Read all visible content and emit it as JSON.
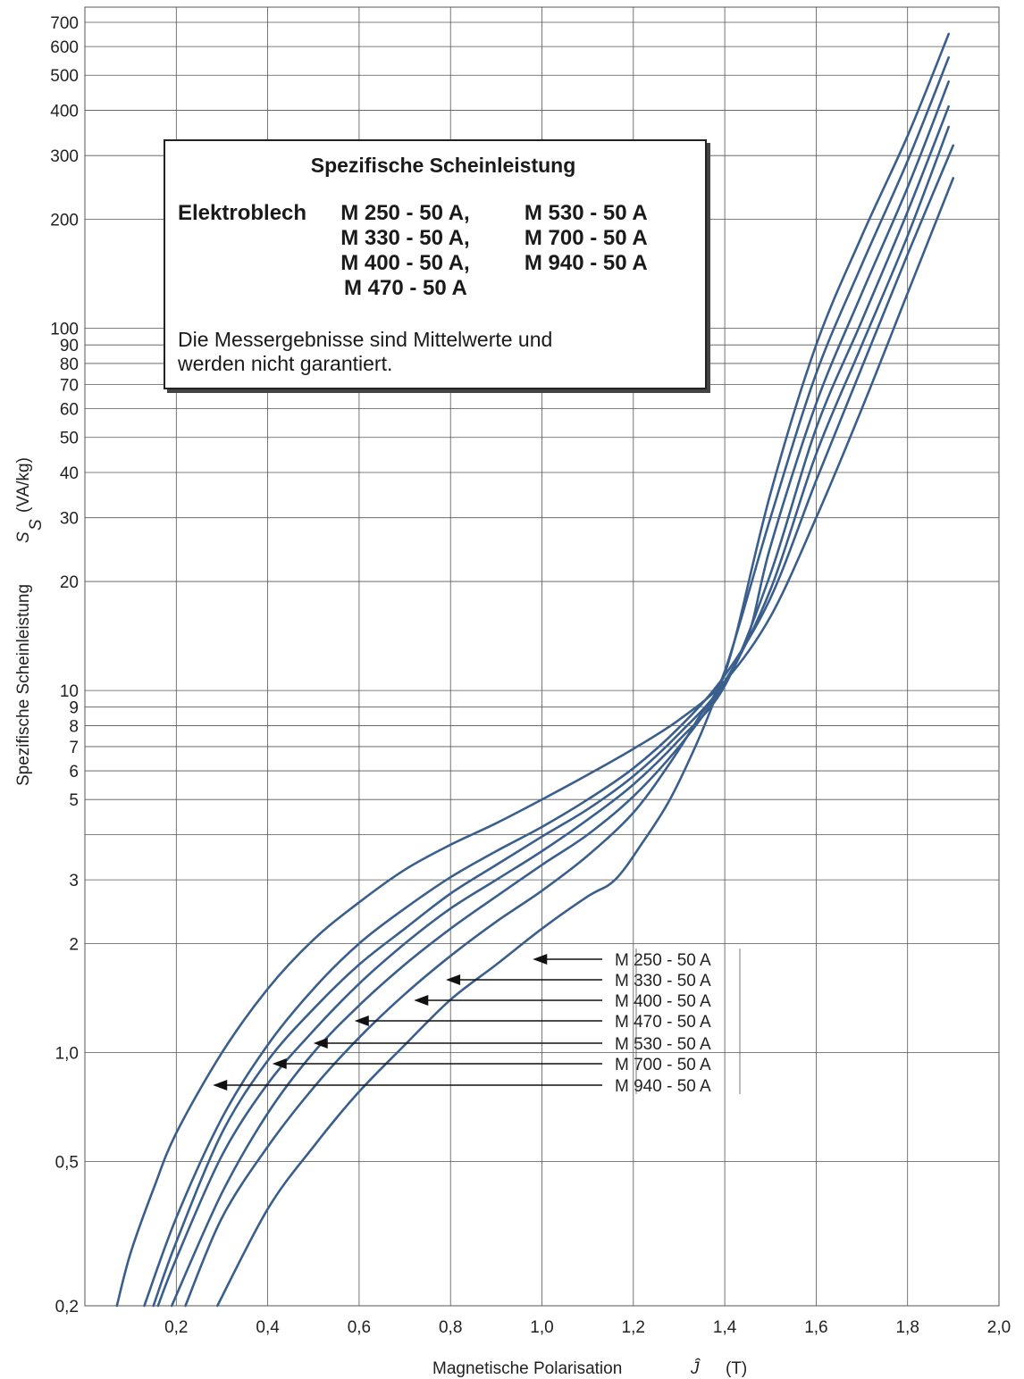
{
  "info_box": {
    "title": "Spezifische Scheinleistung",
    "lead": "Elektroblech",
    "materials_col1": [
      "M  250 - 50 A,",
      "M  330 - 50 A,",
      "M  400 - 50 A,",
      "M  470 - 50 A"
    ],
    "materials_col2": [
      "M  530 - 50 A",
      "M  700 - 50 A",
      "M  940 - 50 A",
      ""
    ],
    "note_line1": "Die Messergebnisse sind Mittelwerte und",
    "note_line2": "werden nicht garantiert."
  },
  "chart_data": {
    "type": "line",
    "title": "Spezifische Scheinleistung",
    "xlabel": "Magnetische Polarisation",
    "xlabel_symbol": "Ĵ",
    "xlabel_unit": "(T)",
    "ylabel": "Spezifische Scheinleistung",
    "ylabel_symbol": "S",
    "ylabel_subscript": "S",
    "ylabel_unit": "(VA/kg)",
    "xlim": [
      0,
      2.0
    ],
    "ylim": [
      0.2,
      800
    ],
    "yscale": "log",
    "grid": true,
    "x_ticks": [
      0.2,
      0.4,
      0.6,
      0.8,
      1.0,
      1.2,
      1.4,
      1.6,
      1.8,
      2.0
    ],
    "x_tick_labels": [
      "0,2",
      "0,4",
      "0,6",
      "0,8",
      "1,0",
      "1,2",
      "1,4",
      "1,6",
      "1,8",
      "2,0"
    ],
    "y_ticks": [
      0.2,
      0.5,
      1,
      2,
      3,
      5,
      6,
      7,
      8,
      9,
      10,
      20,
      30,
      40,
      50,
      60,
      70,
      80,
      90,
      100,
      200,
      300,
      400,
      500,
      600,
      700
    ],
    "y_tick_labels": [
      "0,2",
      "0,5",
      "1,0",
      "2",
      "3",
      "5",
      "6",
      "7",
      "8",
      "9",
      "10",
      "20",
      "30",
      "40",
      "50",
      "60",
      "70",
      "80",
      "90",
      "100",
      "200",
      "300",
      "400",
      "500",
      "600",
      "700"
    ],
    "y_grid_extra": [
      4
    ],
    "series": [
      {
        "name": "M 250 - 50 A",
        "arrow_tip": [
          0.98,
          1.85
        ],
        "points": [
          [
            0.29,
            0.2
          ],
          [
            0.4,
            0.37
          ],
          [
            0.5,
            0.55
          ],
          [
            0.6,
            0.78
          ],
          [
            0.7,
            1.05
          ],
          [
            0.8,
            1.4
          ],
          [
            0.9,
            1.75
          ],
          [
            1.0,
            2.2
          ],
          [
            1.1,
            2.7
          ],
          [
            1.16,
            3.0
          ],
          [
            1.22,
            3.8
          ],
          [
            1.28,
            5.0
          ],
          [
            1.34,
            7.2
          ],
          [
            1.38,
            9.6
          ],
          [
            1.42,
            13.5
          ],
          [
            1.5,
            35
          ],
          [
            1.6,
            90
          ],
          [
            1.7,
            180
          ],
          [
            1.8,
            340
          ],
          [
            1.89,
            650
          ]
        ]
      },
      {
        "name": "M 330 - 50 A",
        "arrow_tip": [
          0.79,
          1.6
        ],
        "points": [
          [
            0.22,
            0.2
          ],
          [
            0.3,
            0.35
          ],
          [
            0.4,
            0.55
          ],
          [
            0.5,
            0.8
          ],
          [
            0.6,
            1.1
          ],
          [
            0.7,
            1.45
          ],
          [
            0.8,
            1.85
          ],
          [
            0.9,
            2.3
          ],
          [
            1.0,
            2.8
          ],
          [
            1.1,
            3.5
          ],
          [
            1.2,
            4.6
          ],
          [
            1.28,
            6.3
          ],
          [
            1.34,
            8.3
          ],
          [
            1.4,
            11.3
          ],
          [
            1.5,
            30
          ],
          [
            1.6,
            75
          ],
          [
            1.7,
            150
          ],
          [
            1.8,
            290
          ],
          [
            1.89,
            560
          ]
        ]
      },
      {
        "name": "M 400 - 50 A",
        "arrow_tip": [
          0.72,
          1.4
        ],
        "points": [
          [
            0.19,
            0.2
          ],
          [
            0.3,
            0.41
          ],
          [
            0.4,
            0.68
          ],
          [
            0.5,
            1.0
          ],
          [
            0.6,
            1.35
          ],
          [
            0.7,
            1.75
          ],
          [
            0.8,
            2.2
          ],
          [
            0.9,
            2.7
          ],
          [
            1.0,
            3.3
          ],
          [
            1.1,
            4.0
          ],
          [
            1.2,
            5.1
          ],
          [
            1.3,
            7.0
          ],
          [
            1.38,
            9.6
          ],
          [
            1.45,
            14
          ],
          [
            1.5,
            25
          ],
          [
            1.6,
            62
          ],
          [
            1.7,
            125
          ],
          [
            1.8,
            245
          ],
          [
            1.89,
            480
          ]
        ]
      },
      {
        "name": "M 470 - 50 A",
        "arrow_tip": [
          0.59,
          1.2
        ],
        "points": [
          [
            0.16,
            0.2
          ],
          [
            0.2,
            0.27
          ],
          [
            0.3,
            0.52
          ],
          [
            0.4,
            0.82
          ],
          [
            0.5,
            1.15
          ],
          [
            0.6,
            1.55
          ],
          [
            0.7,
            2.0
          ],
          [
            0.8,
            2.5
          ],
          [
            0.9,
            3.0
          ],
          [
            1.0,
            3.6
          ],
          [
            1.1,
            4.4
          ],
          [
            1.2,
            5.5
          ],
          [
            1.3,
            7.3
          ],
          [
            1.4,
            10.3
          ],
          [
            1.5,
            21
          ],
          [
            1.6,
            53
          ],
          [
            1.7,
            105
          ],
          [
            1.8,
            210
          ],
          [
            1.89,
            410
          ]
        ]
      },
      {
        "name": "M 530 - 50 A",
        "arrow_tip": [
          0.5,
          1.03
        ],
        "points": [
          [
            0.15,
            0.2
          ],
          [
            0.2,
            0.3
          ],
          [
            0.3,
            0.6
          ],
          [
            0.4,
            0.95
          ],
          [
            0.5,
            1.32
          ],
          [
            0.6,
            1.75
          ],
          [
            0.7,
            2.2
          ],
          [
            0.8,
            2.75
          ],
          [
            0.9,
            3.3
          ],
          [
            1.0,
            3.95
          ],
          [
            1.1,
            4.7
          ],
          [
            1.2,
            5.8
          ],
          [
            1.3,
            7.6
          ],
          [
            1.4,
            10.6
          ],
          [
            1.5,
            19
          ],
          [
            1.6,
            45
          ],
          [
            1.7,
            90
          ],
          [
            1.8,
            180
          ],
          [
            1.89,
            360
          ]
        ]
      },
      {
        "name": "M 700 - 50 A",
        "arrow_tip": [
          0.41,
          0.92
        ],
        "points": [
          [
            0.13,
            0.2
          ],
          [
            0.2,
            0.35
          ],
          [
            0.3,
            0.66
          ],
          [
            0.4,
            1.05
          ],
          [
            0.5,
            1.5
          ],
          [
            0.6,
            2.0
          ],
          [
            0.7,
            2.5
          ],
          [
            0.8,
            3.05
          ],
          [
            0.9,
            3.6
          ],
          [
            1.0,
            4.2
          ],
          [
            1.1,
            5.0
          ],
          [
            1.2,
            6.1
          ],
          [
            1.3,
            7.9
          ],
          [
            1.4,
            11
          ],
          [
            1.5,
            18
          ],
          [
            1.6,
            38
          ],
          [
            1.7,
            78
          ],
          [
            1.8,
            160
          ],
          [
            1.9,
            320
          ]
        ]
      },
      {
        "name": "M 940 - 50 A",
        "arrow_tip": [
          0.28,
          0.82
        ],
        "points": [
          [
            0.07,
            0.2
          ],
          [
            0.1,
            0.28
          ],
          [
            0.15,
            0.42
          ],
          [
            0.2,
            0.6
          ],
          [
            0.3,
            1.0
          ],
          [
            0.4,
            1.5
          ],
          [
            0.5,
            2.05
          ],
          [
            0.6,
            2.6
          ],
          [
            0.7,
            3.2
          ],
          [
            0.8,
            3.75
          ],
          [
            0.9,
            4.3
          ],
          [
            1.0,
            5.0
          ],
          [
            1.1,
            5.85
          ],
          [
            1.2,
            6.9
          ],
          [
            1.3,
            8.3
          ],
          [
            1.4,
            10.6
          ],
          [
            1.5,
            16
          ],
          [
            1.6,
            30
          ],
          [
            1.7,
            60
          ],
          [
            1.8,
            125
          ],
          [
            1.9,
            260
          ]
        ]
      }
    ]
  }
}
